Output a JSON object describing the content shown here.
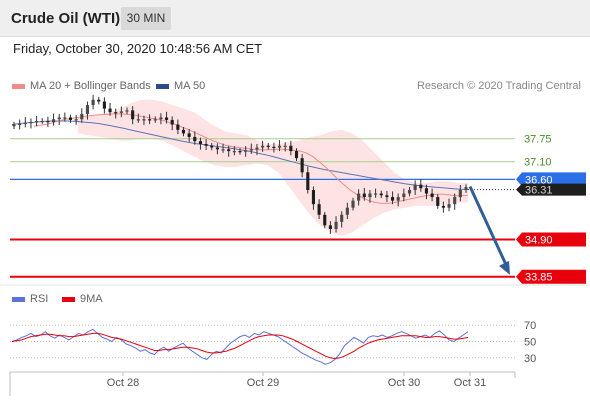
{
  "header": {
    "title": "Crude Oil (WTI)",
    "timeframe": "30 MIN"
  },
  "timestamp": "Friday, October 30, 2020 10:48:56 AM CET",
  "legend": {
    "ma20_label": "MA 20 + Bollinger Bands",
    "ma50_label": "MA 50",
    "rsi_label": "RSI",
    "ma9_label": "9MA"
  },
  "copyright": "Research © 2020 Trading Central",
  "colors": {
    "ma20": "#f08c8c",
    "ma50": "#5c73b8",
    "bollinger": "#fde3e3",
    "candle_up": "#4a4a4a",
    "candle_down": "#1e1e1e",
    "level_green": "#a8d08d",
    "level_blue": "#2a6ee8",
    "level_red": "#e8000c",
    "arrow": "#2f5f94",
    "current_tag": "#1e1e1e",
    "rsi": "#5c73d9",
    "rsi_ma": "#e8000c"
  },
  "chart_data": [
    {
      "type": "candlestick",
      "title": "Crude Oil (WTI) 30 MIN",
      "x_ticks": [
        "Oct 28",
        "Oct 29",
        "Oct 30",
        "Oct 31"
      ],
      "ylim": [
        33.7,
        38.9
      ],
      "levels": [
        {
          "value": 37.75,
          "label": "37.75",
          "kind": "resistance"
        },
        {
          "value": 37.1,
          "label": "37.10",
          "kind": "resistance"
        },
        {
          "value": 36.6,
          "label": "36.60",
          "kind": "pivot"
        },
        {
          "value": 34.9,
          "label": "34.90",
          "kind": "support"
        },
        {
          "value": 33.85,
          "label": "33.85",
          "kind": "support"
        }
      ],
      "current_price": {
        "value": 36.31,
        "label": "36.31"
      },
      "forecast": {
        "from": 36.4,
        "to": 33.9,
        "direction": "down"
      },
      "close_series": [
        38.15,
        38.17,
        38.2,
        38.22,
        38.25,
        38.25,
        38.22,
        38.3,
        38.35,
        38.35,
        38.28,
        38.3,
        38.45,
        38.7,
        38.85,
        38.8,
        38.6,
        38.5,
        38.48,
        38.52,
        38.55,
        38.3,
        38.3,
        38.3,
        38.28,
        38.3,
        38.35,
        38.28,
        38.15,
        38.0,
        37.9,
        37.8,
        37.68,
        37.6,
        37.55,
        37.5,
        37.45,
        37.45,
        37.4,
        37.4,
        37.38,
        37.42,
        37.45,
        37.5,
        37.55,
        37.52,
        37.5,
        37.55,
        37.55,
        37.4,
        37.2,
        36.8,
        36.3,
        35.9,
        35.6,
        35.3,
        35.2,
        35.4,
        35.6,
        35.8,
        36.0,
        36.2,
        36.1,
        36.2,
        36.2,
        36.15,
        36.1,
        36.0,
        36.1,
        36.2,
        36.3,
        36.45,
        36.35,
        36.2,
        36.1,
        35.85,
        35.8,
        35.9,
        36.1,
        36.3,
        36.38
      ],
      "ma20_series": [
        38.1,
        38.13,
        38.16,
        38.2,
        38.25,
        38.3,
        38.32,
        38.35,
        38.38,
        38.4,
        38.42,
        38.43,
        38.44,
        38.45,
        38.45,
        38.44,
        38.42,
        38.39,
        38.36,
        38.33,
        38.3,
        38.26,
        38.2,
        38.14,
        38.07,
        38.0,
        37.92,
        37.84,
        37.76,
        37.68,
        37.62,
        37.56,
        37.52,
        37.5,
        37.48,
        37.46,
        37.44,
        37.44,
        37.44,
        37.45,
        37.45,
        37.44,
        37.42,
        37.4,
        37.34,
        37.24,
        37.1,
        36.95,
        36.78,
        36.6,
        36.45,
        36.3,
        36.18,
        36.08,
        36.0,
        35.95,
        35.92,
        35.92,
        35.94,
        35.98,
        36.02,
        36.06,
        36.1,
        36.13,
        36.16,
        36.18,
        36.18,
        36.16,
        36.14,
        36.14,
        36.15
      ],
      "ma50_series": [
        38.15,
        38.18,
        38.2,
        38.22,
        38.24,
        38.25,
        38.25,
        38.25,
        38.24,
        38.22,
        38.2,
        38.17,
        38.13,
        38.09,
        38.04,
        37.99,
        37.94,
        37.89,
        37.84,
        37.79,
        37.74,
        37.69,
        37.65,
        37.61,
        37.58,
        37.55,
        37.52,
        37.49,
        37.46,
        37.42,
        37.38,
        37.33,
        37.28,
        37.22,
        37.16,
        37.1,
        37.04,
        36.98,
        36.93,
        36.88,
        36.84,
        36.8,
        36.76,
        36.72,
        36.68,
        36.64,
        36.6,
        36.56,
        36.52,
        36.48,
        36.45,
        36.42,
        36.4,
        36.38,
        36.36,
        36.34,
        36.32,
        36.31
      ],
      "bollinger_upper": [
        38.35,
        38.4,
        38.45,
        38.5,
        38.6,
        38.75,
        38.85,
        38.85,
        38.8,
        38.7,
        38.6,
        38.5,
        38.3,
        38.1,
        37.95,
        37.9,
        37.85,
        37.7,
        37.6,
        37.6,
        37.65,
        37.7,
        37.8,
        37.85,
        37.95,
        38.0,
        37.9,
        37.7,
        37.4,
        37.1,
        36.8,
        36.6,
        36.5,
        36.5,
        36.55,
        36.55,
        36.5,
        36.5
      ],
      "bollinger_lower": [
        37.9,
        37.85,
        37.8,
        37.75,
        37.7,
        37.7,
        37.75,
        37.75,
        37.7,
        37.55,
        37.4,
        37.25,
        37.1,
        37.0,
        36.95,
        36.95,
        37.0,
        37.05,
        37.0,
        36.8,
        36.4,
        36.0,
        35.6,
        35.3,
        35.1,
        35.0,
        35.1,
        35.3,
        35.5,
        35.65,
        35.75,
        35.8,
        35.85,
        35.85,
        35.85,
        35.9,
        35.95,
        35.95
      ]
    },
    {
      "type": "line",
      "title": "RSI",
      "y_ticks": [
        70,
        50,
        30
      ],
      "ylim": [
        15,
        85
      ],
      "series": [
        {
          "name": "RSI",
          "values": [
            50,
            52,
            55,
            57,
            60,
            56,
            58,
            62,
            57,
            54,
            58,
            55,
            52,
            56,
            60,
            58,
            62,
            65,
            60,
            55,
            53,
            50,
            55,
            52,
            47,
            45,
            42,
            38,
            40,
            36,
            34,
            40,
            43,
            38,
            42,
            45,
            48,
            42,
            38,
            34,
            30,
            28,
            34,
            38,
            36,
            42,
            48,
            52,
            56,
            58,
            55,
            60,
            58,
            62,
            60,
            58,
            56,
            52,
            48,
            44,
            40,
            36,
            33,
            30,
            27,
            25,
            22,
            24,
            28,
            35,
            45,
            50,
            55,
            52,
            48,
            55,
            57,
            56,
            58,
            55,
            57,
            60,
            62,
            60,
            57,
            54,
            56,
            58,
            55,
            60,
            63,
            58,
            52,
            50,
            54,
            58,
            62
          ]
        },
        {
          "name": "9MA",
          "values": [
            50,
            51,
            52,
            54,
            56,
            57,
            58,
            59,
            59,
            58,
            57,
            57,
            56,
            56,
            57,
            58,
            59,
            60,
            60,
            59,
            57,
            55,
            54,
            53,
            51,
            49,
            47,
            45,
            43,
            41,
            39,
            39,
            40,
            40,
            41,
            42,
            43,
            43,
            42,
            41,
            39,
            37,
            36,
            36,
            37,
            38,
            40,
            42,
            45,
            48,
            51,
            54,
            56,
            57,
            58,
            58,
            58,
            57,
            55,
            53,
            50,
            47,
            44,
            41,
            38,
            35,
            32,
            30,
            29,
            30,
            32,
            35,
            38,
            42,
            45,
            48,
            50,
            52,
            53,
            54,
            55,
            56,
            57,
            57,
            57,
            57,
            56,
            55,
            55,
            56,
            56,
            55,
            54,
            53,
            53,
            54,
            55
          ]
        }
      ]
    }
  ]
}
